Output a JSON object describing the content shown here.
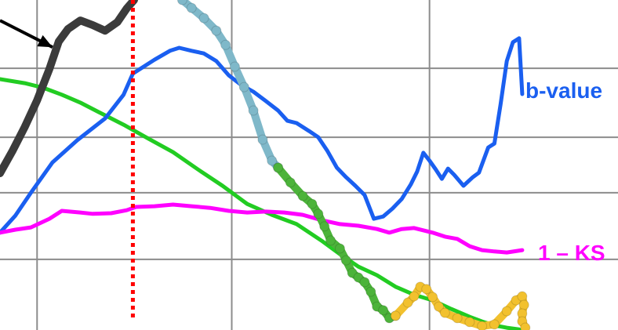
{
  "chart_data": {
    "type": "line",
    "title": "",
    "xlabel": "",
    "ylabel": "",
    "xlim": [
      0,
      100
    ],
    "ylim": [
      0,
      100
    ],
    "grid": true,
    "grid_x": [
      6,
      37.5,
      69.5
    ],
    "grid_y": [
      21.4,
      41.6,
      58.4,
      79.3
    ],
    "vertical_marker": {
      "x": 21.5,
      "style": "dotted",
      "color": "#ff0000"
    },
    "annotation_arrow": {
      "from": [
        0,
        93.8
      ],
      "to": [
        8.5,
        85.7
      ],
      "color": "#000000"
    },
    "series": [
      {
        "name": "b-value",
        "color": "#1a5ff0",
        "label_color": "#1a5ff0",
        "points": [
          [
            0,
            29.5
          ],
          [
            2.5,
            34.7
          ],
          [
            5,
            41.6
          ],
          [
            8.5,
            50.8
          ],
          [
            12.5,
            57.5
          ],
          [
            17,
            64.1
          ],
          [
            20,
            71.3
          ],
          [
            21.5,
            77.7
          ],
          [
            25,
            81.9
          ],
          [
            27.5,
            84.6
          ],
          [
            29,
            85.5
          ],
          [
            31,
            84.6
          ],
          [
            33,
            83.8
          ],
          [
            35,
            81.5
          ],
          [
            37,
            77.2
          ],
          [
            39,
            74.3
          ],
          [
            41,
            72.2
          ],
          [
            43,
            69.4
          ],
          [
            45,
            66.5
          ],
          [
            46.5,
            63.4
          ],
          [
            48,
            62.7
          ],
          [
            50,
            60.3
          ],
          [
            51.5,
            58.4
          ],
          [
            53,
            54.2
          ],
          [
            54.5,
            49.2
          ],
          [
            56,
            46.3
          ],
          [
            57.5,
            43.7
          ],
          [
            59,
            40.9
          ],
          [
            60.5,
            33.7
          ],
          [
            62,
            34.4
          ],
          [
            63.5,
            36.8
          ],
          [
            65,
            39.7
          ],
          [
            66.5,
            44.2
          ],
          [
            67.5,
            48.0
          ],
          [
            68.5,
            53.7
          ],
          [
            69.5,
            51.3
          ],
          [
            70.5,
            48.7
          ],
          [
            71.5,
            45.8
          ],
          [
            72.5,
            48.9
          ],
          [
            73.5,
            47.0
          ],
          [
            75,
            43.7
          ],
          [
            76.5,
            46.3
          ],
          [
            77.5,
            47.7
          ],
          [
            79,
            55.3
          ],
          [
            80,
            56.5
          ],
          [
            81,
            68.4
          ],
          [
            82,
            81.5
          ],
          [
            83,
            87.2
          ],
          [
            84,
            88.4
          ],
          [
            84.5,
            71.5
          ]
        ]
      },
      {
        "name": "1 – KS",
        "color": "#ff00ff",
        "label_color": "#ff00ff",
        "points": [
          [
            0,
            29.5
          ],
          [
            2.5,
            30.4
          ],
          [
            5,
            31.1
          ],
          [
            8,
            33.7
          ],
          [
            10,
            36.1
          ],
          [
            13,
            35.6
          ],
          [
            15,
            35.2
          ],
          [
            18,
            35.4
          ],
          [
            20.5,
            36.3
          ],
          [
            22,
            37.3
          ],
          [
            25,
            37.5
          ],
          [
            28,
            38.0
          ],
          [
            31,
            37.5
          ],
          [
            34,
            37.0
          ],
          [
            37,
            36.1
          ],
          [
            40,
            35.6
          ],
          [
            43,
            35.9
          ],
          [
            46,
            35.6
          ],
          [
            49,
            34.9
          ],
          [
            52,
            33.3
          ],
          [
            55,
            32.1
          ],
          [
            58,
            31.6
          ],
          [
            61,
            30.6
          ],
          [
            63,
            29.5
          ],
          [
            65,
            30.6
          ],
          [
            67,
            30.9
          ],
          [
            70,
            29.5
          ],
          [
            72,
            28.3
          ],
          [
            74,
            27.6
          ],
          [
            76,
            25.4
          ],
          [
            78,
            24.2
          ],
          [
            80,
            23.8
          ],
          [
            82,
            23.5
          ],
          [
            84.5,
            24.2
          ]
        ]
      },
      {
        "name": "",
        "color": "#22cc22",
        "points": [
          [
            0,
            76.0
          ],
          [
            4,
            74.8
          ],
          [
            7,
            73.4
          ],
          [
            10,
            71.3
          ],
          [
            13,
            68.9
          ],
          [
            16,
            66.0
          ],
          [
            20,
            62.2
          ],
          [
            24,
            58.0
          ],
          [
            28,
            53.9
          ],
          [
            32,
            48.7
          ],
          [
            36,
            43.7
          ],
          [
            40,
            38.2
          ],
          [
            44,
            34.9
          ],
          [
            48,
            32.1
          ],
          [
            52,
            27.1
          ],
          [
            55,
            23.0
          ],
          [
            58,
            19.2
          ],
          [
            61,
            16.6
          ],
          [
            64,
            13.1
          ],
          [
            67,
            10.7
          ],
          [
            70,
            9.0
          ],
          [
            73,
            6.4
          ],
          [
            76,
            4.0
          ],
          [
            78,
            2.6
          ],
          [
            80,
            1.4
          ],
          [
            82,
            0.7
          ],
          [
            84,
            0.2
          ]
        ]
      },
      {
        "name": "",
        "color": "#3b3b3b",
        "points": [
          [
            0,
            47.5
          ],
          [
            2,
            54.2
          ],
          [
            4,
            61.5
          ],
          [
            6,
            69.6
          ],
          [
            8,
            79.1
          ],
          [
            9.5,
            87.4
          ],
          [
            11,
            91.2
          ],
          [
            13,
            93.8
          ],
          [
            15,
            92.4
          ],
          [
            17,
            90.7
          ],
          [
            19,
            93.3
          ],
          [
            20.5,
            97.4
          ],
          [
            21.7,
            100
          ]
        ]
      },
      {
        "name": "",
        "color": "#7fb8c9",
        "points": [
          [
            29.5,
            100
          ],
          [
            31,
            97.6
          ],
          [
            33,
            94.5
          ],
          [
            35,
            90.7
          ],
          [
            36.5,
            86.4
          ],
          [
            38,
            79.8
          ],
          [
            39.5,
            73.6
          ],
          [
            41,
            66.5
          ],
          [
            42.5,
            57.7
          ],
          [
            44,
            51.3
          ],
          [
            45,
            49.2
          ]
        ]
      },
      {
        "name": "",
        "color": "#4cb33a",
        "points": [
          [
            45,
            49.2
          ],
          [
            47,
            44.7
          ],
          [
            49,
            40.6
          ],
          [
            50.5,
            38.2
          ],
          [
            51.5,
            35.2
          ],
          [
            52.5,
            31.4
          ],
          [
            53.5,
            27.1
          ],
          [
            55,
            24.7
          ],
          [
            56,
            21.1
          ],
          [
            57,
            17.3
          ],
          [
            58,
            15.9
          ],
          [
            59,
            14.5
          ],
          [
            60,
            11.6
          ],
          [
            61,
            7.1
          ],
          [
            62,
            6.0
          ],
          [
            63,
            3.6
          ],
          [
            64,
            4.3
          ]
        ]
      },
      {
        "name": "",
        "color": "#f2c12e",
        "points": [
          [
            64,
            4.3
          ],
          [
            66,
            8.3
          ],
          [
            67,
            10.2
          ],
          [
            68,
            13.1
          ],
          [
            69,
            12.4
          ],
          [
            70,
            10.0
          ],
          [
            71,
            7.1
          ],
          [
            72,
            5.2
          ],
          [
            74,
            3.6
          ],
          [
            76,
            2.4
          ],
          [
            78,
            1.2
          ],
          [
            80,
            1.7
          ],
          [
            82,
            5.7
          ],
          [
            83.5,
            9.0
          ],
          [
            84.5,
            10.2
          ],
          [
            84.8,
            7.6
          ],
          [
            84.5,
            5.0
          ],
          [
            84.5,
            2.6
          ],
          [
            85,
            0.7
          ]
        ]
      }
    ]
  }
}
